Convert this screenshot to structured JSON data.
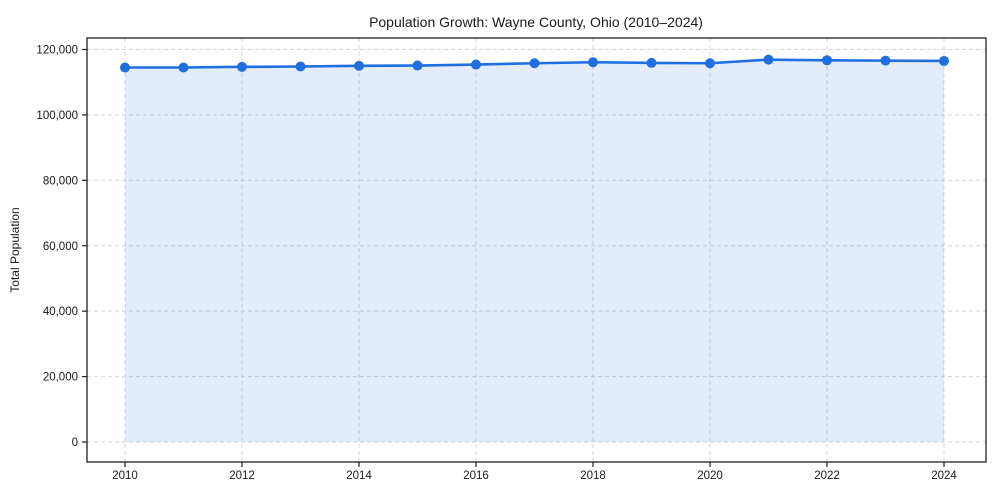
{
  "chart_data": {
    "type": "line",
    "title": "Population Growth: Wayne County, Ohio (2010–2024)",
    "xlabel": "",
    "ylabel": "Total Population",
    "x": [
      2010,
      2011,
      2012,
      2013,
      2014,
      2015,
      2016,
      2017,
      2018,
      2019,
      2020,
      2021,
      2022,
      2023,
      2024
    ],
    "series": [
      {
        "name": "Total Population",
        "values": [
          114500,
          114500,
          114700,
          114800,
          115000,
          115100,
          115400,
          115800,
          116100,
          115900,
          115800,
          116900,
          116700,
          116600,
          116500
        ]
      }
    ],
    "xticks": [
      2010,
      2012,
      2014,
      2016,
      2018,
      2020,
      2022,
      2024
    ],
    "yticks": [
      0,
      20000,
      40000,
      60000,
      80000,
      100000,
      120000
    ],
    "ylim": [
      0,
      120000
    ],
    "grid": true,
    "grid_style": "dashed",
    "legend": false,
    "marker": "circle",
    "area_fill": true,
    "line_color": "#1f6fe0",
    "marker_color": "#1f6fe0",
    "fill_color": "rgba(31,111,224,0.13)",
    "grid_color": "#d6d6d6",
    "border_color": "#1f1f1f",
    "text_color": "#1a1a1a",
    "background_color": "#ffffff"
  }
}
